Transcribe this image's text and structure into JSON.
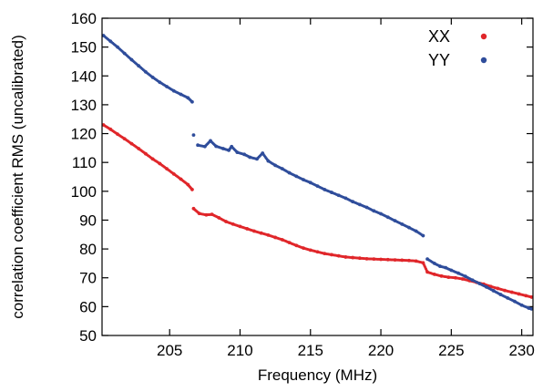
{
  "chart_data": {
    "type": "scatter",
    "title": "",
    "xlabel": "Frequency (MHz)",
    "ylabel": "correlation coefficient RMS (uncalibrated)",
    "xlim": [
      200.2,
      230.8
    ],
    "ylim": [
      50,
      160
    ],
    "xticks": [
      205,
      210,
      215,
      220,
      225,
      230
    ],
    "yticks": [
      50,
      60,
      70,
      80,
      90,
      100,
      110,
      120,
      130,
      140,
      150,
      160
    ],
    "grid": false,
    "legend_position": "top-right",
    "series": [
      {
        "name": "XX",
        "color": "#e0262a",
        "points": [
          [
            200.3,
            123
          ],
          [
            200.8,
            121.5
          ],
          [
            201.3,
            119.8
          ],
          [
            201.8,
            118.2
          ],
          [
            202.3,
            116.5
          ],
          [
            202.8,
            114.8
          ],
          [
            203.3,
            113
          ],
          [
            203.8,
            111.2
          ],
          [
            204.3,
            109.6
          ],
          [
            204.8,
            107.8
          ],
          [
            205.3,
            106
          ],
          [
            205.8,
            104.2
          ],
          [
            206.3,
            102.3
          ],
          [
            206.6,
            100.6
          ],
          [
            206.7,
            94
          ],
          [
            207.1,
            92.3
          ],
          [
            207.6,
            91.8
          ],
          [
            208,
            92
          ],
          [
            208.5,
            90.8
          ],
          [
            209,
            89.5
          ],
          [
            209.5,
            88.6
          ],
          [
            210,
            87.8
          ],
          [
            210.5,
            87
          ],
          [
            211,
            86.2
          ],
          [
            211.5,
            85.5
          ],
          [
            212,
            84.8
          ],
          [
            212.5,
            84
          ],
          [
            213,
            83.2
          ],
          [
            213.5,
            82.2
          ],
          [
            214,
            81.2
          ],
          [
            214.5,
            80.3
          ],
          [
            215,
            79.6
          ],
          [
            215.5,
            79
          ],
          [
            216,
            78.4
          ],
          [
            216.5,
            78
          ],
          [
            217,
            77.6
          ],
          [
            217.5,
            77.2
          ],
          [
            218,
            77
          ],
          [
            218.5,
            76.8
          ],
          [
            219,
            76.6
          ],
          [
            219.5,
            76.5
          ],
          [
            220,
            76.4
          ],
          [
            220.5,
            76.3
          ],
          [
            221,
            76.2
          ],
          [
            221.5,
            76.1
          ],
          [
            222,
            76
          ],
          [
            222.5,
            75.8
          ],
          [
            223,
            75.2
          ],
          [
            223.3,
            72
          ],
          [
            223.8,
            71.2
          ],
          [
            224.3,
            70.6
          ],
          [
            224.8,
            70.2
          ],
          [
            225.3,
            70
          ],
          [
            225.8,
            69.6
          ],
          [
            226.3,
            69
          ],
          [
            226.8,
            68.4
          ],
          [
            227.3,
            67.8
          ],
          [
            227.8,
            67
          ],
          [
            228.3,
            66.3
          ],
          [
            228.8,
            65.6
          ],
          [
            229.3,
            65
          ],
          [
            229.8,
            64.4
          ],
          [
            230.3,
            63.8
          ],
          [
            230.7,
            63.3
          ]
        ]
      },
      {
        "name": "YY",
        "color": "#2f4d9b",
        "points": [
          [
            200.3,
            154
          ],
          [
            200.8,
            152
          ],
          [
            201.3,
            150
          ],
          [
            201.8,
            147.8
          ],
          [
            202.3,
            145.6
          ],
          [
            202.8,
            143.5
          ],
          [
            203.3,
            141.4
          ],
          [
            203.8,
            139.5
          ],
          [
            204.3,
            137.8
          ],
          [
            204.8,
            136.3
          ],
          [
            205.3,
            134.8
          ],
          [
            205.8,
            133.6
          ],
          [
            206.3,
            132.4
          ],
          [
            206.6,
            131
          ],
          [
            206.7,
            119.5
          ],
          [
            207,
            116
          ],
          [
            207.5,
            115.5
          ],
          [
            207.9,
            117.5
          ],
          [
            208.3,
            115.6
          ],
          [
            208.8,
            114.8
          ],
          [
            209.2,
            114.2
          ],
          [
            209.4,
            115.5
          ],
          [
            209.8,
            113.5
          ],
          [
            210.3,
            112.8
          ],
          [
            210.7,
            111.8
          ],
          [
            211.2,
            111.2
          ],
          [
            211.6,
            113.2
          ],
          [
            212,
            110.5
          ],
          [
            212.5,
            109
          ],
          [
            213,
            107.8
          ],
          [
            213.5,
            106.4
          ],
          [
            214,
            105.2
          ],
          [
            214.5,
            104
          ],
          [
            215,
            103
          ],
          [
            215.5,
            101.8
          ],
          [
            216,
            100.6
          ],
          [
            216.5,
            99.6
          ],
          [
            217,
            98.6
          ],
          [
            217.5,
            97.6
          ],
          [
            218,
            96.4
          ],
          [
            218.5,
            95.4
          ],
          [
            219,
            94.4
          ],
          [
            219.5,
            93.2
          ],
          [
            220,
            92.2
          ],
          [
            220.5,
            91
          ],
          [
            221,
            89.8
          ],
          [
            221.5,
            88.6
          ],
          [
            222,
            87.4
          ],
          [
            222.5,
            86.2
          ],
          [
            223,
            84.6
          ],
          [
            223.3,
            76.5
          ],
          [
            223.8,
            75
          ],
          [
            224.2,
            74
          ],
          [
            224.6,
            73.5
          ],
          [
            225,
            72.6
          ],
          [
            225.5,
            71.6
          ],
          [
            226,
            70.5
          ],
          [
            226.5,
            69.2
          ],
          [
            227,
            68
          ],
          [
            227.5,
            66.8
          ],
          [
            228,
            65.5
          ],
          [
            228.5,
            64.2
          ],
          [
            229,
            63
          ],
          [
            229.5,
            61.8
          ],
          [
            230,
            60.5
          ],
          [
            230.5,
            59.5
          ],
          [
            230.7,
            59.2
          ]
        ]
      }
    ]
  }
}
